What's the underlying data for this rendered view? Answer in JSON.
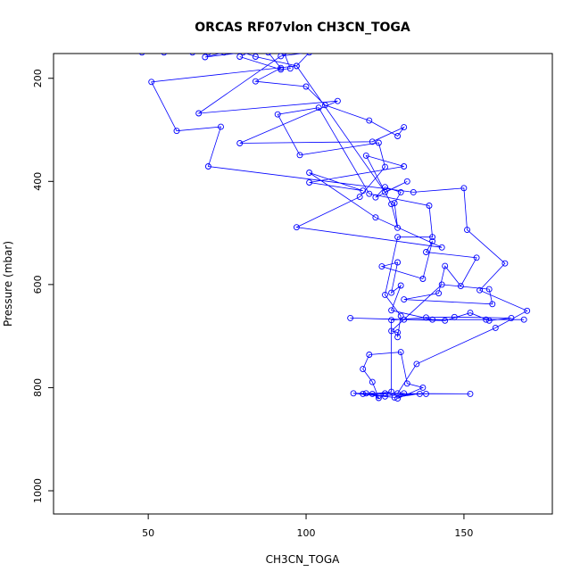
{
  "chart_data": {
    "type": "scatter",
    "title": "ORCAS RF07vlon CH3CN_TOGA",
    "xlabel": "CH3CN_TOGA",
    "ylabel": "Pressure (mbar)",
    "xlim": [
      20,
      178
    ],
    "ylim": [
      1045,
      152
    ],
    "y_reversed": true,
    "xticks": [
      50,
      100,
      150
    ],
    "yticks": [
      200,
      400,
      600,
      800,
      1000
    ],
    "grid": false,
    "legend": "none",
    "connect_points": true,
    "series": [
      {
        "color": "#0000ff",
        "points": [
          [
            48,
            150
          ],
          [
            55,
            150
          ],
          [
            69,
            150
          ],
          [
            88,
            150
          ],
          [
            92,
            180
          ],
          [
            84,
            206
          ],
          [
            100,
            216
          ],
          [
            106,
            252
          ],
          [
            120,
            282
          ],
          [
            129,
            312
          ],
          [
            131,
            295
          ],
          [
            121,
            323
          ],
          [
            79,
            326
          ],
          [
            110,
            244
          ],
          [
            66,
            268
          ],
          [
            92,
            157
          ],
          [
            101,
            150
          ],
          [
            97,
            176
          ],
          [
            51,
            207
          ],
          [
            59,
            302
          ],
          [
            73,
            294
          ],
          [
            69,
            371
          ],
          [
            134,
            421
          ],
          [
            150,
            413
          ],
          [
            151,
            494
          ],
          [
            163,
            559
          ],
          [
            155,
            611
          ],
          [
            170,
            651
          ],
          [
            160,
            684
          ],
          [
            135,
            754
          ],
          [
            129,
            811
          ],
          [
            119,
            811
          ],
          [
            125,
            817
          ],
          [
            115,
            811
          ],
          [
            152,
            812
          ],
          [
            136,
            812
          ],
          [
            128,
            819
          ],
          [
            123,
            816
          ],
          [
            138,
            812
          ],
          [
            118,
            812
          ],
          [
            125,
            811
          ],
          [
            131,
            811
          ],
          [
            129,
            821
          ],
          [
            137,
            800
          ],
          [
            132,
            792
          ],
          [
            130,
            731
          ],
          [
            120,
            736
          ],
          [
            118,
            764
          ],
          [
            121,
            789
          ],
          [
            123,
            820
          ],
          [
            121,
            812
          ],
          [
            127,
            808
          ],
          [
            127,
            669
          ],
          [
            138,
            664
          ],
          [
            147,
            663
          ],
          [
            165,
            665
          ],
          [
            158,
            670
          ],
          [
            152,
            655
          ],
          [
            144,
            670
          ],
          [
            114,
            665
          ],
          [
            131,
            668
          ],
          [
            169,
            668
          ],
          [
            157,
            668
          ],
          [
            140,
            668
          ],
          [
            127,
            650
          ],
          [
            130,
            602
          ],
          [
            127,
            616
          ],
          [
            129,
            557
          ],
          [
            124,
            565
          ],
          [
            137,
            589
          ],
          [
            140,
            516
          ],
          [
            138,
            537
          ],
          [
            154,
            548
          ],
          [
            149,
            603
          ],
          [
            144,
            564
          ],
          [
            142,
            617
          ],
          [
            131,
            629
          ],
          [
            159,
            638
          ],
          [
            158,
            609
          ],
          [
            143,
            600
          ],
          [
            127,
            690
          ],
          [
            129,
            693
          ],
          [
            129,
            702
          ],
          [
            130,
            661
          ],
          [
            125,
            620
          ],
          [
            129,
            508
          ],
          [
            140,
            508
          ],
          [
            139,
            447
          ],
          [
            120,
            424
          ],
          [
            104,
            257
          ],
          [
            91,
            270
          ],
          [
            98,
            349
          ],
          [
            123,
            325
          ],
          [
            125,
            372
          ],
          [
            117,
            430
          ],
          [
            97,
            489
          ],
          [
            143,
            528
          ],
          [
            122,
            470
          ],
          [
            101,
            383
          ],
          [
            118,
            418
          ],
          [
            101,
            402
          ],
          [
            131,
            371
          ],
          [
            119,
            350
          ],
          [
            127,
            444
          ],
          [
            129,
            490
          ],
          [
            128,
            442
          ],
          [
            130,
            421
          ],
          [
            125,
            411
          ],
          [
            122,
            431
          ],
          [
            132,
            400
          ],
          [
            125,
            421
          ],
          [
            97,
            176
          ],
          [
            84,
            158
          ],
          [
            80,
            150
          ],
          [
            68,
            159
          ],
          [
            74,
            150
          ],
          [
            64,
            150
          ],
          [
            93,
            150
          ],
          [
            95,
            181
          ],
          [
            92,
            183
          ],
          [
            79,
            158
          ]
        ]
      }
    ]
  }
}
